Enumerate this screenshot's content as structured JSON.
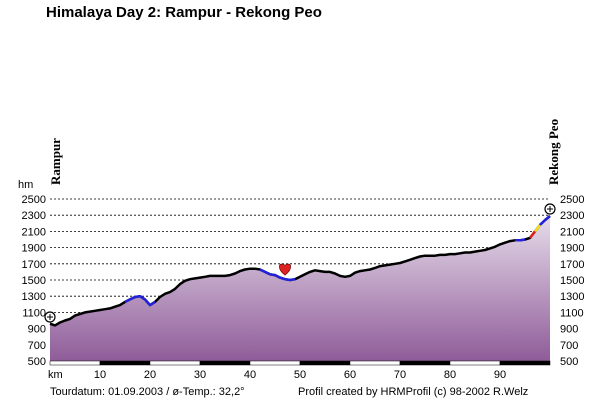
{
  "chart_data": {
    "type": "area",
    "title": "Himalaya Day 2: Rampur - Rekong Peo",
    "ylabel": "hm",
    "xlabel": "km",
    "x_ticks": [
      10,
      20,
      30,
      40,
      50,
      60,
      70,
      80,
      90
    ],
    "y_ticks": [
      500,
      700,
      900,
      1100,
      1300,
      1500,
      1700,
      1900,
      2100,
      2300,
      2500
    ],
    "xlim": [
      0,
      100
    ],
    "ylim": [
      500,
      2500
    ],
    "grid": "horizontal-dashed",
    "start_label": "Rampur",
    "end_label": "Rekong Peo",
    "series": [
      {
        "x": [
          0,
          1,
          2,
          3,
          4,
          5,
          6,
          7,
          8,
          9,
          10,
          11,
          12,
          13,
          14,
          15,
          16,
          17,
          18,
          19,
          20,
          21,
          22,
          23,
          24,
          25,
          26,
          27,
          28,
          29,
          30,
          31,
          32,
          33,
          34,
          35,
          36,
          37,
          38,
          39,
          40,
          41,
          42,
          43,
          44,
          45,
          46,
          47,
          48,
          49,
          50,
          51,
          52,
          53,
          54,
          55,
          56,
          57,
          58,
          59,
          60,
          61,
          62,
          63,
          64,
          65,
          66,
          67,
          68,
          69,
          70,
          71,
          72,
          73,
          74,
          75,
          76,
          77,
          78,
          79,
          80,
          81,
          82,
          83,
          84,
          85,
          86,
          87,
          88,
          89,
          90,
          91,
          92,
          93,
          94,
          95,
          96,
          97,
          98,
          99,
          100
        ],
        "values": [
          960,
          940,
          975,
          1000,
          1020,
          1060,
          1080,
          1100,
          1110,
          1120,
          1130,
          1140,
          1150,
          1170,
          1190,
          1230,
          1260,
          1290,
          1300,
          1260,
          1190,
          1230,
          1290,
          1330,
          1350,
          1390,
          1450,
          1490,
          1510,
          1520,
          1530,
          1540,
          1550,
          1550,
          1550,
          1550,
          1560,
          1580,
          1610,
          1630,
          1640,
          1640,
          1630,
          1600,
          1570,
          1560,
          1530,
          1510,
          1500,
          1510,
          1540,
          1570,
          1600,
          1620,
          1610,
          1600,
          1600,
          1580,
          1550,
          1540,
          1550,
          1590,
          1610,
          1620,
          1630,
          1650,
          1670,
          1680,
          1690,
          1700,
          1710,
          1730,
          1750,
          1770,
          1790,
          1800,
          1800,
          1800,
          1810,
          1810,
          1820,
          1820,
          1830,
          1840,
          1840,
          1850,
          1860,
          1870,
          1890,
          1910,
          1940,
          1960,
          1980,
          1990,
          1990,
          2000,
          2020,
          2100,
          2180,
          2240,
          2290
        ]
      }
    ],
    "segments": [
      {
        "from": 15,
        "to": 21,
        "color": "#2222dd"
      },
      {
        "from": 42,
        "to": 49,
        "color": "#2222dd"
      },
      {
        "from": 93,
        "to": 95,
        "color": "#2222dd"
      },
      {
        "from": 96,
        "to": 97,
        "color": "#dd2222"
      },
      {
        "from": 97,
        "to": 98,
        "color": "#eedd22"
      },
      {
        "from": 98,
        "to": 100,
        "color": "#2222dd"
      }
    ],
    "marker_km": 47,
    "colors": {
      "fill_top": "#e6dcea",
      "fill_bottom": "#8f5c99",
      "line": "#000000",
      "marker": "#dd2222"
    }
  },
  "footer": {
    "tourdatum": "Tourdatum: 01.09.2003",
    "separator": "/",
    "temp": "ø-Temp.: 32,2°",
    "credit": "Profil created by HRMProfil (c) 98-2002 R.Welz"
  }
}
